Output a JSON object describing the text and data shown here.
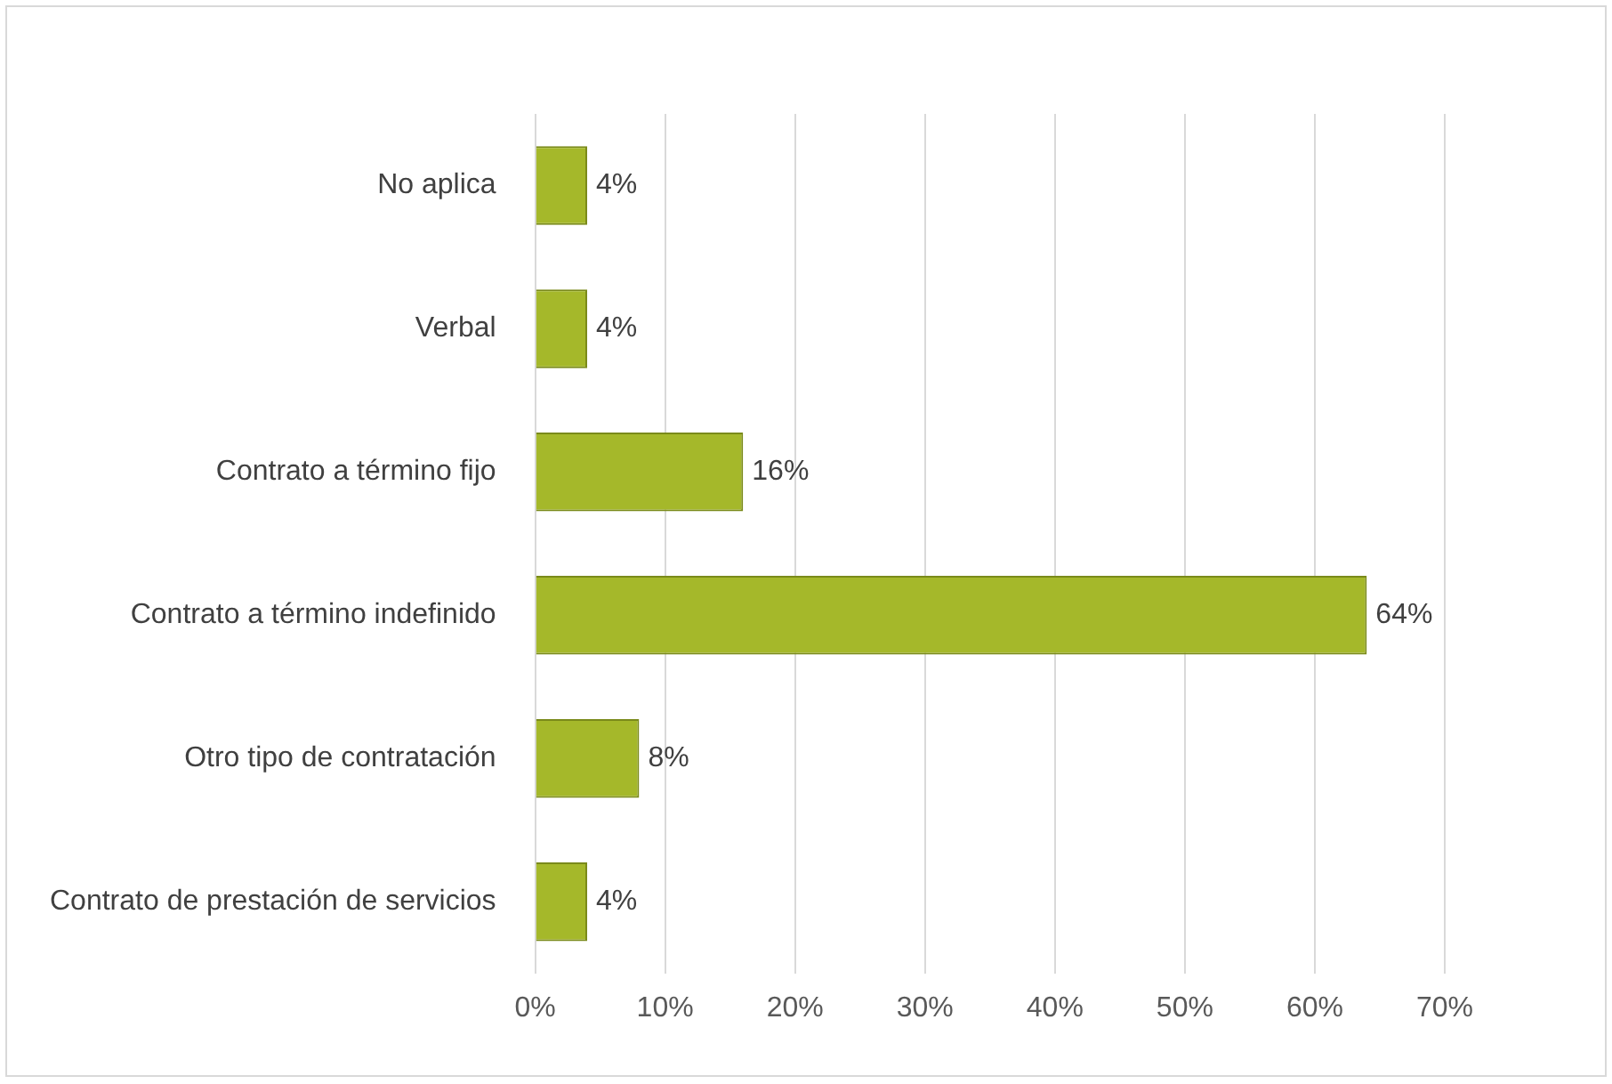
{
  "chart_data": {
    "type": "bar",
    "orientation": "horizontal",
    "categories": [
      "No aplica",
      "Verbal",
      "Contrato a término fijo",
      "Contrato a término indefinido",
      "Otro tipo de contratación",
      "Contrato de prestación de servicios"
    ],
    "values": [
      4,
      4,
      16,
      64,
      8,
      4
    ],
    "value_labels": [
      "4%",
      "4%",
      "16%",
      "64%",
      "8%",
      "4%"
    ],
    "color": "#a5b82a",
    "xlim": [
      0,
      70
    ],
    "xticks": [
      {
        "value": 0,
        "label": "0%"
      },
      {
        "value": 10,
        "label": "10%"
      },
      {
        "value": 20,
        "label": "20%"
      },
      {
        "value": 30,
        "label": "30%"
      },
      {
        "value": 40,
        "label": "40%"
      },
      {
        "value": 50,
        "label": "50%"
      },
      {
        "value": 60,
        "label": "60%"
      },
      {
        "value": 70,
        "label": "70%"
      }
    ],
    "grid": "x",
    "legend": false
  }
}
